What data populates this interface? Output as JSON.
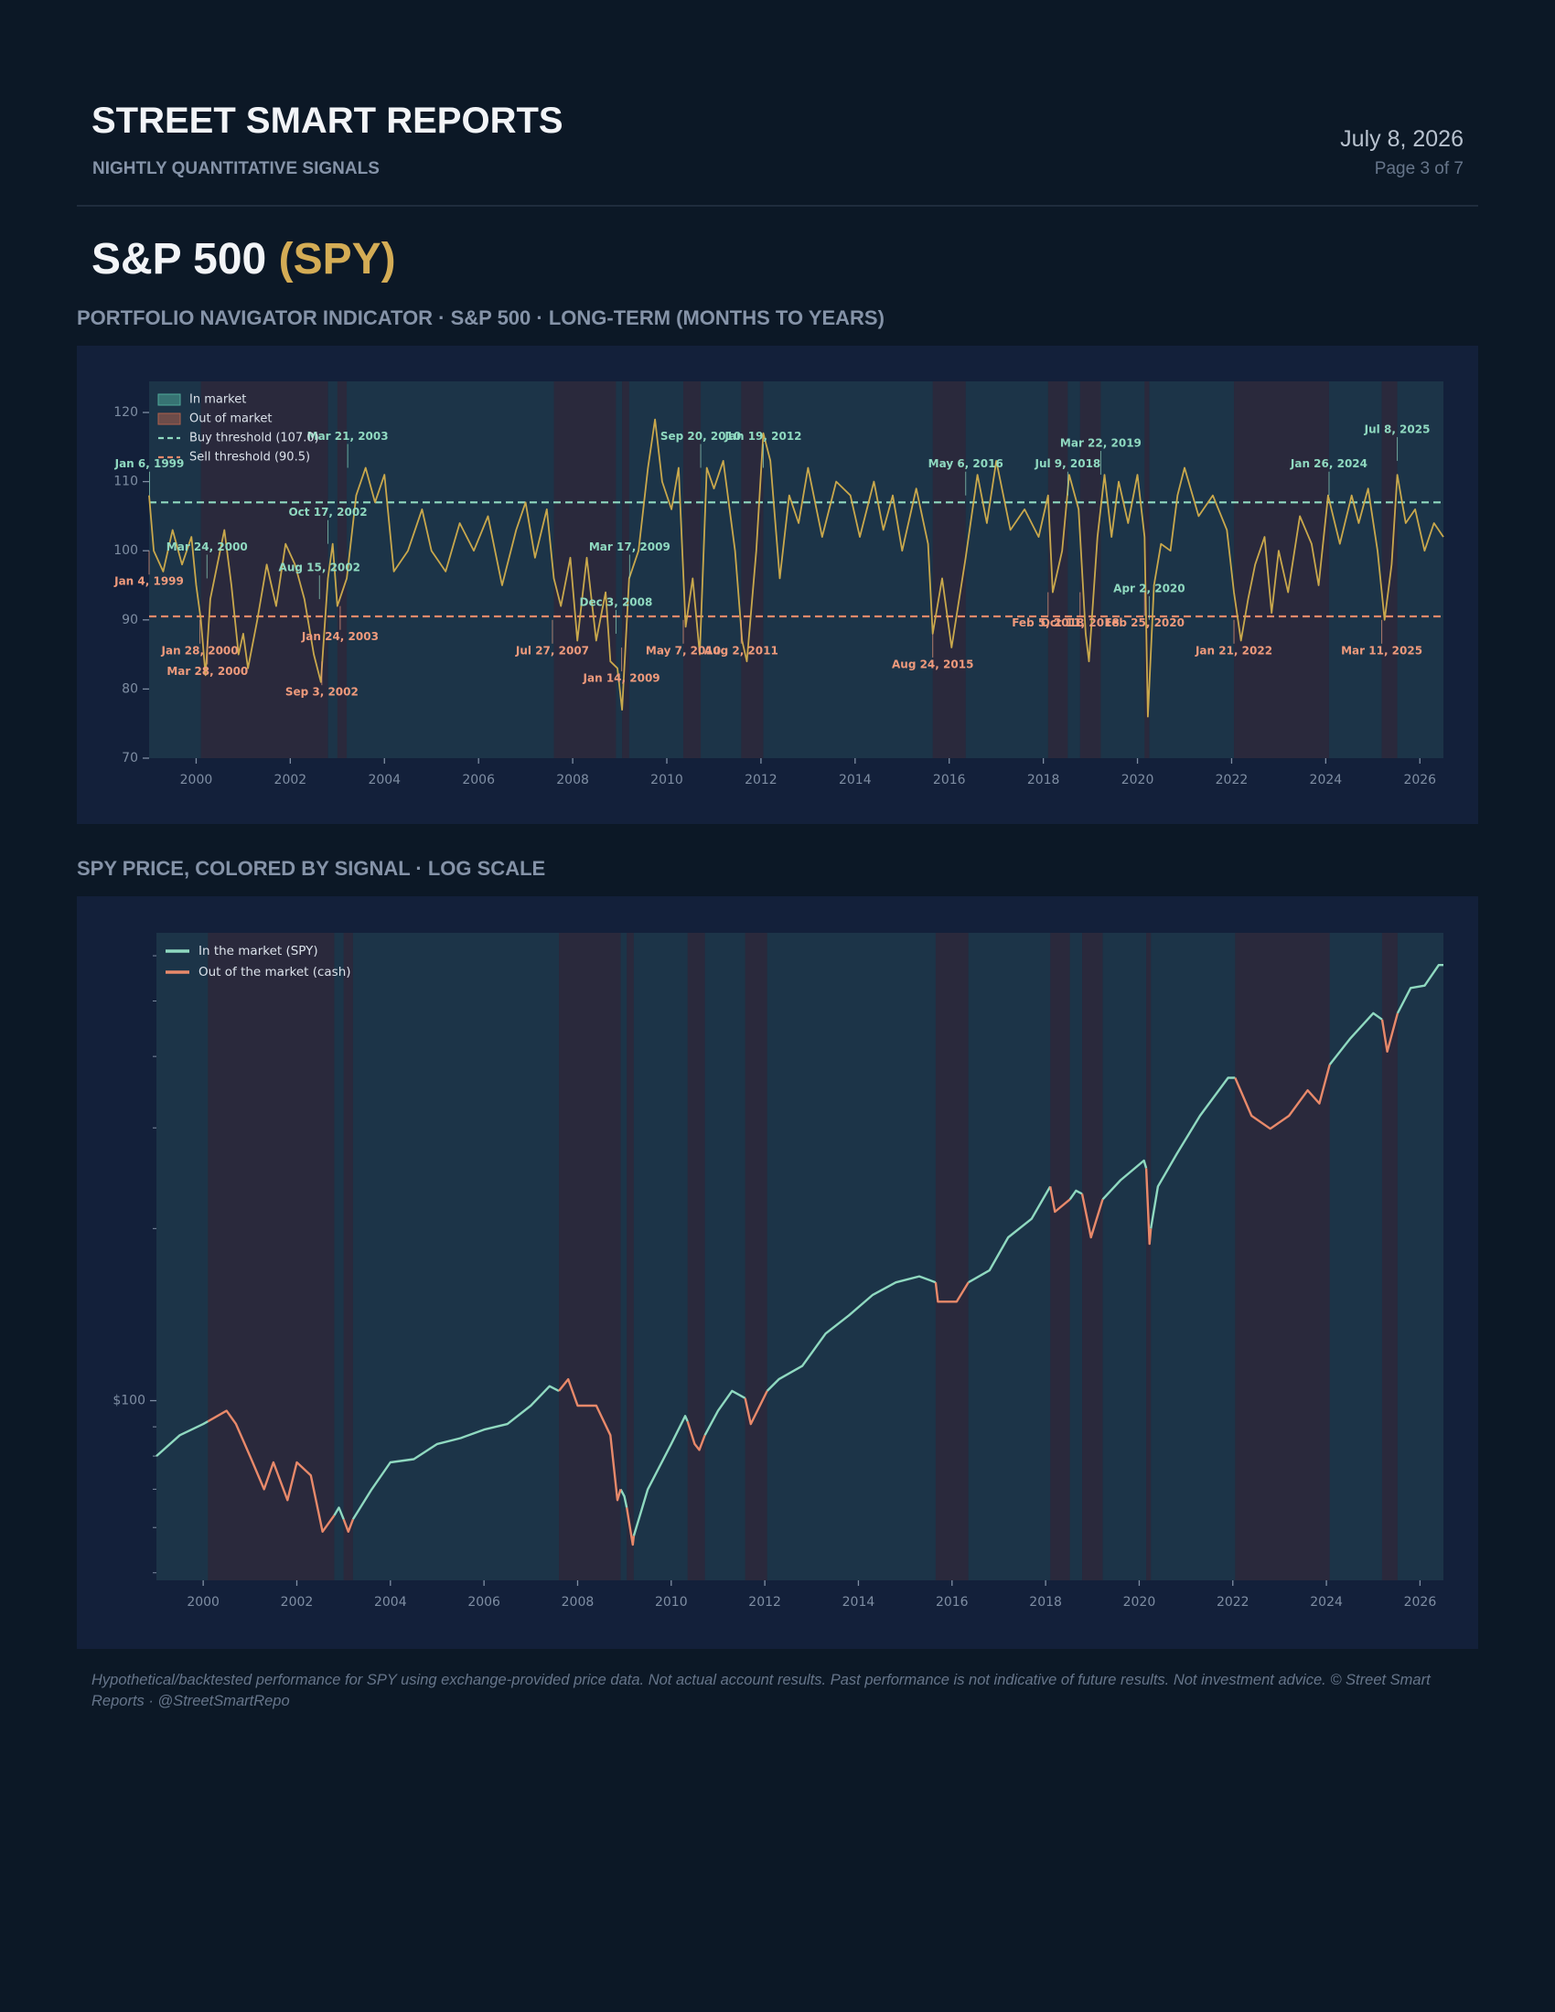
{
  "header": {
    "title": "STREET SMART REPORTS",
    "subtitle": "NIGHTLY QUANTITATIVE SIGNALS",
    "date": "July 8, 2026",
    "page": "Page 3 of 7"
  },
  "ticker": {
    "name": "S&P 500",
    "symbol": "(SPY)"
  },
  "chart_data": [
    {
      "type": "line",
      "title": "PORTFOLIO NAVIGATOR INDICATOR · S&P 500 · LONG-TERM (MONTHS TO YEARS)",
      "color": "#c9a84c",
      "x": [
        1999.0,
        1999.1,
        1999.3,
        1999.5,
        1999.7,
        1999.9,
        2000.0,
        2000.1,
        2000.2,
        2000.3,
        2000.45,
        2000.6,
        2000.75,
        2000.9,
        2001.0,
        2001.1,
        2001.3,
        2001.5,
        2001.7,
        2001.9,
        2002.1,
        2002.3,
        2002.5,
        2002.65,
        2002.8,
        2002.9,
        2003.0,
        2003.2,
        2003.4,
        2003.6,
        2003.8,
        2004.0,
        2004.2,
        2004.5,
        2004.8,
        2005.0,
        2005.3,
        2005.6,
        2005.9,
        2006.2,
        2006.5,
        2006.8,
        2007.0,
        2007.2,
        2007.45,
        2007.6,
        2007.75,
        2007.95,
        2008.1,
        2008.3,
        2008.5,
        2008.7,
        2008.8,
        2008.95,
        2009.05,
        2009.2,
        2009.4,
        2009.6,
        2009.75,
        2009.9,
        2010.1,
        2010.25,
        2010.4,
        2010.55,
        2010.7,
        2010.85,
        2011.0,
        2011.2,
        2011.45,
        2011.6,
        2011.7,
        2011.9,
        2012.05,
        2012.2,
        2012.4,
        2012.6,
        2012.8,
        2013.0,
        2013.3,
        2013.6,
        2013.9,
        2014.1,
        2014.4,
        2014.6,
        2014.8,
        2015.0,
        2015.3,
        2015.55,
        2015.65,
        2015.85,
        2016.05,
        2016.35,
        2016.6,
        2016.8,
        2017.0,
        2017.3,
        2017.6,
        2017.9,
        2018.1,
        2018.2,
        2018.4,
        2018.55,
        2018.75,
        2018.9,
        2018.97,
        2019.15,
        2019.3,
        2019.45,
        2019.6,
        2019.8,
        2020.0,
        2020.15,
        2020.22,
        2020.35,
        2020.5,
        2020.7,
        2020.85,
        2021.0,
        2021.3,
        2021.6,
        2021.9,
        2022.05,
        2022.2,
        2022.35,
        2022.5,
        2022.7,
        2022.85,
        2023.0,
        2023.2,
        2023.45,
        2023.7,
        2023.85,
        2024.05,
        2024.3,
        2024.55,
        2024.7,
        2024.9,
        2025.1,
        2025.25,
        2025.4,
        2025.52,
        2025.7,
        2025.9,
        2026.1,
        2026.3,
        2026.5
      ],
      "values": [
        108,
        100,
        97,
        103,
        98,
        102,
        95,
        90,
        82,
        93,
        98,
        103,
        95,
        85,
        88,
        83,
        90,
        98,
        92,
        101,
        98,
        93,
        85,
        81,
        96,
        101,
        92,
        96,
        108,
        112,
        107,
        111,
        97,
        100,
        106,
        100,
        97,
        104,
        100,
        105,
        95,
        103,
        107,
        99,
        106,
        96,
        92,
        99,
        87,
        99,
        87,
        94,
        84,
        83,
        77,
        96,
        100,
        112,
        119,
        110,
        106,
        112,
        89,
        96,
        85,
        112,
        109,
        113,
        100,
        87,
        84,
        100,
        117,
        113,
        96,
        108,
        104,
        112,
        102,
        110,
        108,
        102,
        110,
        103,
        108,
        100,
        109,
        101,
        88,
        96,
        86,
        99,
        111,
        104,
        113,
        103,
        106,
        102,
        108,
        94,
        100,
        111,
        106,
        88,
        84,
        102,
        111,
        102,
        110,
        104,
        111,
        102,
        76,
        95,
        101,
        100,
        108,
        112,
        105,
        108,
        103,
        94,
        87,
        93,
        98,
        102,
        91,
        100,
        94,
        105,
        101,
        95,
        108,
        101,
        108,
        104,
        109,
        100,
        90,
        98,
        111,
        104,
        106,
        100,
        104,
        102
      ],
      "xlim": [
        1999.0,
        2026.5
      ],
      "xticks": [
        2000,
        2002,
        2004,
        2006,
        2008,
        2010,
        2012,
        2014,
        2016,
        2018,
        2020,
        2022,
        2024,
        2026
      ],
      "ylim": [
        70,
        124.5
      ],
      "yticks": [
        70,
        80,
        90,
        100,
        110,
        120
      ],
      "bands": {
        "in": {
          "name": "In market",
          "color": "#4fa898"
        },
        "out": {
          "name": "Out of market",
          "color": "#b0604a"
        }
      },
      "regimes": [
        {
          "start": 1999.0,
          "end": 2000.1,
          "state": "in"
        },
        {
          "start": 2000.1,
          "end": 2002.8,
          "state": "out"
        },
        {
          "start": 2002.8,
          "end": 2003.0,
          "state": "in"
        },
        {
          "start": 2003.0,
          "end": 2003.2,
          "state": "out"
        },
        {
          "start": 2003.2,
          "end": 2007.6,
          "state": "in"
        },
        {
          "start": 2007.6,
          "end": 2008.92,
          "state": "out"
        },
        {
          "start": 2008.92,
          "end": 2009.05,
          "state": "in"
        },
        {
          "start": 2009.05,
          "end": 2009.2,
          "state": "out"
        },
        {
          "start": 2009.2,
          "end": 2010.35,
          "state": "in"
        },
        {
          "start": 2010.35,
          "end": 2010.72,
          "state": "out"
        },
        {
          "start": 2010.72,
          "end": 2011.58,
          "state": "in"
        },
        {
          "start": 2011.58,
          "end": 2012.05,
          "state": "out"
        },
        {
          "start": 2012.05,
          "end": 2015.65,
          "state": "in"
        },
        {
          "start": 2015.65,
          "end": 2016.35,
          "state": "out"
        },
        {
          "start": 2016.35,
          "end": 2018.1,
          "state": "in"
        },
        {
          "start": 2018.1,
          "end": 2018.52,
          "state": "out"
        },
        {
          "start": 2018.52,
          "end": 2018.78,
          "state": "in"
        },
        {
          "start": 2018.78,
          "end": 2019.22,
          "state": "out"
        },
        {
          "start": 2019.22,
          "end": 2020.15,
          "state": "in"
        },
        {
          "start": 2020.15,
          "end": 2020.25,
          "state": "out"
        },
        {
          "start": 2020.25,
          "end": 2022.05,
          "state": "in"
        },
        {
          "start": 2022.05,
          "end": 2024.07,
          "state": "out"
        },
        {
          "start": 2024.07,
          "end": 2025.19,
          "state": "in"
        },
        {
          "start": 2025.19,
          "end": 2025.52,
          "state": "out"
        },
        {
          "start": 2025.52,
          "end": 2026.5,
          "state": "in"
        }
      ],
      "thresholds": [
        {
          "name": "Buy threshold (107.0)",
          "value": 107,
          "color": "#8fd9c0"
        },
        {
          "name": "Sell threshold (90.5)",
          "value": 90.5,
          "color": "#e8896a"
        }
      ],
      "annotation_colors": {
        "buy": "#8fd9c0",
        "sell": "#ee9a7c"
      },
      "annotations": [
        {
          "text": "Jan 6, 1999",
          "x": 1999.01,
          "y": 108,
          "signal": "buy"
        },
        {
          "text": "Jan 4, 1999",
          "x": 1999.0,
          "y": 100,
          "signal": "sell"
        },
        {
          "text": "Jan 28, 2000",
          "x": 2000.08,
          "y": 90,
          "signal": "sell"
        },
        {
          "text": "Mar 24, 2000",
          "x": 2000.23,
          "y": 96,
          "signal": "buy"
        },
        {
          "text": "Mar 28, 2000",
          "x": 2000.24,
          "y": 87,
          "signal": "sell"
        },
        {
          "text": "Sep 3, 2002",
          "x": 2002.67,
          "y": 84,
          "signal": "sell"
        },
        {
          "text": "Aug 15, 2002",
          "x": 2002.62,
          "y": 93,
          "signal": "buy"
        },
        {
          "text": "Oct 17, 2002",
          "x": 2002.8,
          "y": 101,
          "signal": "buy"
        },
        {
          "text": "Jan 24, 2003",
          "x": 2003.06,
          "y": 92,
          "signal": "sell"
        },
        {
          "text": "Mar 21, 2003",
          "x": 2003.22,
          "y": 112,
          "signal": "buy"
        },
        {
          "text": "Jul 27, 2007",
          "x": 2007.57,
          "y": 90,
          "signal": "sell"
        },
        {
          "text": "Dec 3, 2008",
          "x": 2008.92,
          "y": 88,
          "signal": "buy"
        },
        {
          "text": "Jan 14, 2009",
          "x": 2009.04,
          "y": 86,
          "signal": "sell"
        },
        {
          "text": "Mar 17, 2009",
          "x": 2009.21,
          "y": 96,
          "signal": "buy"
        },
        {
          "text": "May 7, 2010",
          "x": 2010.35,
          "y": 90,
          "signal": "sell"
        },
        {
          "text": "Sep 20, 2010",
          "x": 2010.72,
          "y": 112,
          "signal": "buy"
        },
        {
          "text": "Aug 2, 2011",
          "x": 2011.58,
          "y": 90,
          "signal": "sell"
        },
        {
          "text": "Jan 19, 2012",
          "x": 2012.05,
          "y": 112,
          "signal": "buy"
        },
        {
          "text": "Aug 24, 2015",
          "x": 2015.65,
          "y": 88,
          "signal": "sell"
        },
        {
          "text": "May 6, 2016",
          "x": 2016.35,
          "y": 108,
          "signal": "buy"
        },
        {
          "text": "Feb 5, 2018",
          "x": 2018.1,
          "y": 94,
          "signal": "sell"
        },
        {
          "text": "Jul 9, 2018",
          "x": 2018.52,
          "y": 108,
          "signal": "buy"
        },
        {
          "text": "Oct 11, 2018",
          "x": 2018.78,
          "y": 94,
          "signal": "sell"
        },
        {
          "text": "Mar 22, 2019",
          "x": 2019.22,
          "y": 111,
          "signal": "buy"
        },
        {
          "text": "Feb 25, 2020",
          "x": 2020.15,
          "y": 94,
          "signal": "sell"
        },
        {
          "text": "Apr 2, 2020",
          "x": 2020.25,
          "y": 90,
          "signal": "buy"
        },
        {
          "text": "Jan 21, 2022",
          "x": 2022.05,
          "y": 90,
          "signal": "sell"
        },
        {
          "text": "Jan 26, 2024",
          "x": 2024.07,
          "y": 108,
          "signal": "buy"
        },
        {
          "text": "Mar 11, 2025",
          "x": 2025.19,
          "y": 90,
          "signal": "sell"
        },
        {
          "text": "Jul 8, 2025",
          "x": 2025.52,
          "y": 113,
          "signal": "buy"
        }
      ]
    },
    {
      "type": "line",
      "title": "SPY PRICE, COLORED BY SIGNAL · LOG SCALE",
      "log_scale": true,
      "x": [
        1999.0,
        1999.5,
        2000.0,
        2000.1,
        2000.5,
        2000.7,
        2001.0,
        2001.3,
        2001.5,
        2001.8,
        2002.0,
        2002.3,
        2002.55,
        2002.8,
        2002.9,
        2003.0,
        2003.1,
        2003.2,
        2003.6,
        2004.0,
        2004.5,
        2005.0,
        2005.5,
        2006.0,
        2006.5,
        2007.0,
        2007.4,
        2007.6,
        2007.8,
        2008.0,
        2008.4,
        2008.7,
        2008.85,
        2008.92,
        2009.0,
        2009.05,
        2009.18,
        2009.2,
        2009.5,
        2010.0,
        2010.3,
        2010.35,
        2010.5,
        2010.6,
        2010.72,
        2011.0,
        2011.3,
        2011.58,
        2011.7,
        2012.05,
        2012.3,
        2012.8,
        2013.3,
        2013.8,
        2014.3,
        2014.8,
        2015.3,
        2015.65,
        2015.7,
        2016.1,
        2016.35,
        2016.8,
        2017.2,
        2017.7,
        2018.1,
        2018.2,
        2018.52,
        2018.65,
        2018.78,
        2018.97,
        2019.22,
        2019.6,
        2020.1,
        2020.15,
        2020.22,
        2020.25,
        2020.4,
        2020.8,
        2021.3,
        2021.9,
        2022.05,
        2022.4,
        2022.8,
        2023.2,
        2023.6,
        2023.85,
        2024.07,
        2024.5,
        2025.0,
        2025.19,
        2025.3,
        2025.52,
        2025.8,
        2026.1,
        2026.4,
        2026.5
      ],
      "series": [
        {
          "name": "In the market (SPY)",
          "color": "#8fd9c0",
          "values": [
            80,
            87,
            91,
            92,
            null,
            null,
            null,
            null,
            null,
            null,
            null,
            null,
            null,
            63,
            65,
            62,
            null,
            62,
            70,
            78,
            79,
            84,
            86,
            89,
            91,
            98,
            106,
            104,
            null,
            null,
            null,
            null,
            null,
            70,
            68,
            65,
            null,
            58,
            70,
            84,
            94,
            92,
            null,
            null,
            87,
            96,
            104,
            101,
            null,
            104,
            109,
            115,
            131,
            141,
            153,
            161,
            165,
            161,
            null,
            null,
            161,
            169,
            193,
            208,
            237,
            null,
            225,
            233,
            230,
            null,
            225,
            243,
            263,
            255,
            null,
            200,
            237,
            270,
            315,
            367,
            367,
            null,
            null,
            null,
            null,
            null,
            387,
            429,
            476,
            464,
            null,
            476,
            527,
            532,
            578,
            578
          ]
        },
        {
          "name": "Out of the market (cash)",
          "color": "#e8896a",
          "values": [
            null,
            null,
            null,
            92,
            96,
            91,
            80,
            70,
            78,
            67,
            78,
            74,
            59,
            63,
            null,
            62,
            59,
            62,
            null,
            null,
            null,
            null,
            null,
            null,
            null,
            null,
            null,
            104,
            109,
            98,
            98,
            87,
            67,
            70,
            null,
            65,
            56,
            58,
            null,
            null,
            null,
            92,
            84,
            82,
            87,
            null,
            null,
            101,
            91,
            104,
            null,
            null,
            null,
            null,
            null,
            null,
            null,
            161,
            149,
            149,
            161,
            null,
            null,
            null,
            237,
            214,
            225,
            null,
            230,
            193,
            225,
            null,
            null,
            255,
            188,
            200,
            null,
            null,
            null,
            null,
            367,
            315,
            299,
            315,
            349,
            331,
            387,
            null,
            null,
            464,
            408,
            476,
            null,
            null,
            null,
            null
          ]
        }
      ],
      "xlim": [
        1999.0,
        2026.5
      ],
      "xticks": [
        2000,
        2002,
        2004,
        2006,
        2008,
        2010,
        2012,
        2014,
        2016,
        2018,
        2020,
        2022,
        2024,
        2026
      ],
      "ylim": [
        48.5,
        658
      ],
      "yticks": [
        {
          "value": 100,
          "label": "$100"
        }
      ],
      "yminorticks": [
        50,
        60,
        70,
        80,
        90,
        200,
        300,
        400,
        500,
        600
      ]
    }
  ],
  "footer": "Hypothetical/backtested performance for SPY using exchange-provided price data. Not actual account results. Past performance is not indicative of future results. Not investment advice. © Street Smart Reports · @StreetSmartRepo"
}
